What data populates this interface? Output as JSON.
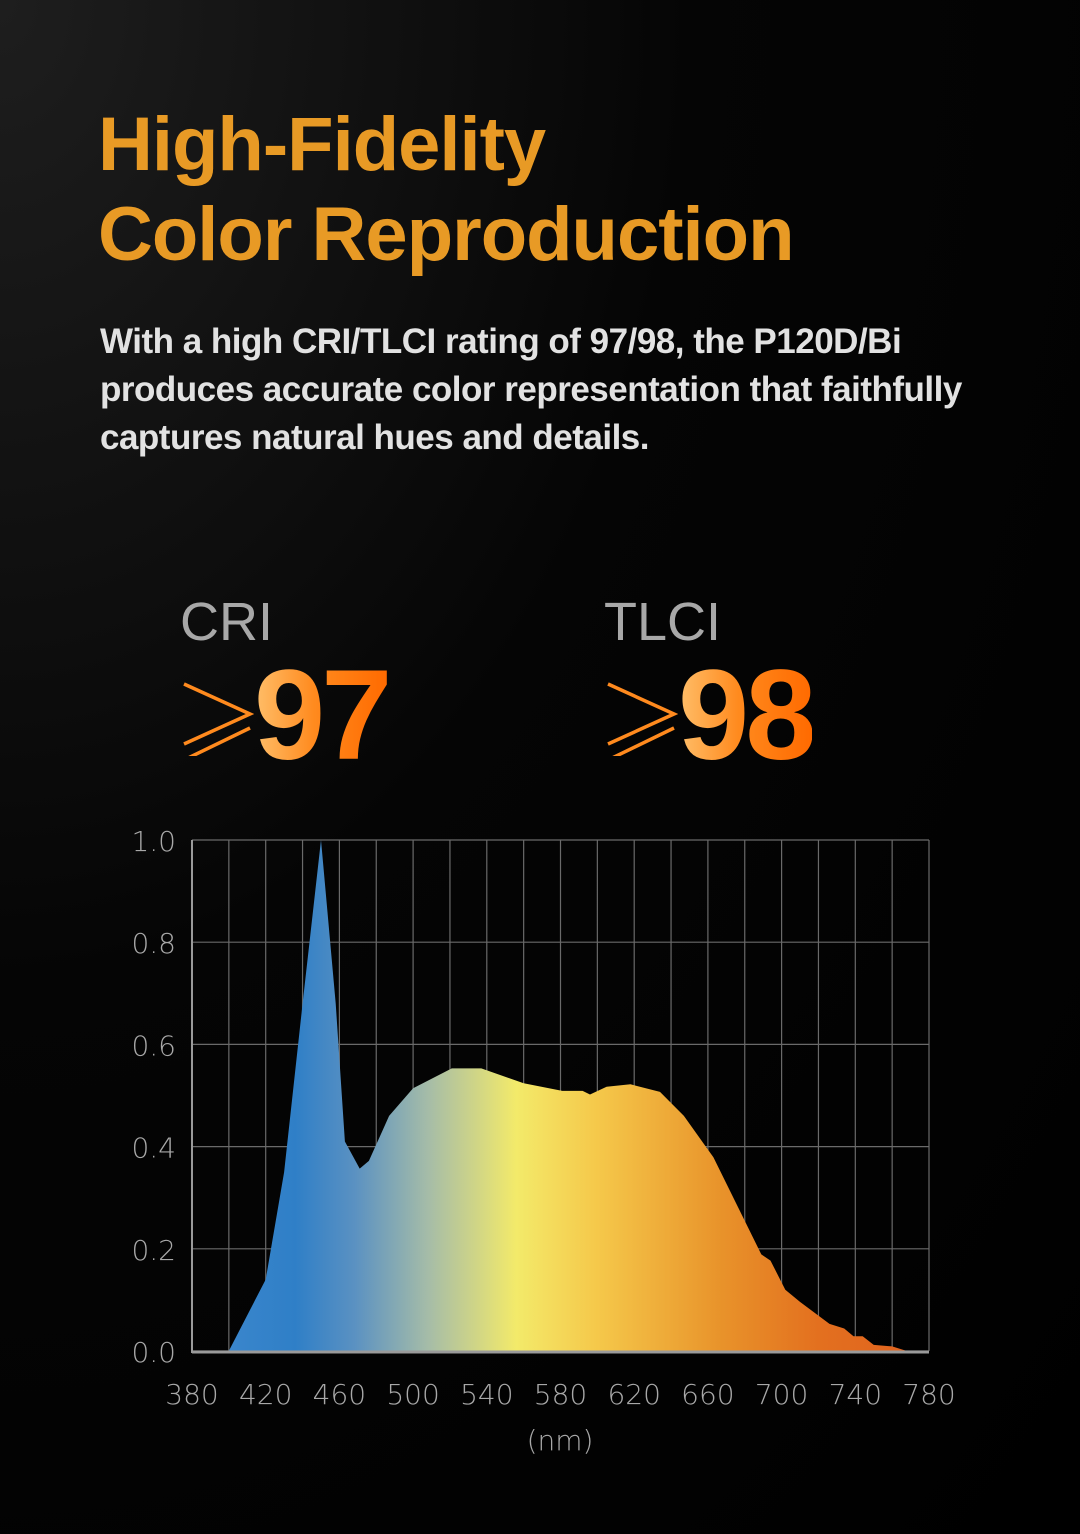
{
  "header": {
    "title_line1": "High-Fidelity",
    "title_line2": "Color Reproduction",
    "description": "With a high CRI/TLCI rating of 97/98, the P120D/Bi produces accurate color representation that faithfully captures natural hues and details."
  },
  "metrics": [
    {
      "label": "CRI",
      "symbol": "≥",
      "value": "97"
    },
    {
      "label": "TLCI",
      "symbol": "≥",
      "value": "98"
    }
  ],
  "colors": {
    "title": "#e89a25",
    "metric_gradient": [
      "#ffbf6a",
      "#ff6a00"
    ],
    "spectrum_gradient": [
      "#2f7fc7",
      "#f5ea62",
      "#e8922a",
      "#e0601e"
    ]
  },
  "chart_data": {
    "type": "area",
    "title": "",
    "xlabel": "(nm)",
    "ylabel": "",
    "xlim": [
      380,
      780
    ],
    "ylim": [
      0,
      1.0
    ],
    "xticks": [
      "380",
      "420",
      "460",
      "500",
      "540",
      "580",
      "620",
      "660",
      "700",
      "740",
      "780"
    ],
    "yticks": [
      "0.0",
      "0.2",
      "0.4",
      "0.6",
      "0.8",
      "1.0"
    ],
    "grid": true,
    "x": [
      400,
      420,
      430,
      440,
      450,
      458,
      463,
      471,
      476,
      487,
      500,
      521,
      537,
      560,
      581,
      592,
      596,
      605,
      618,
      634,
      647,
      663,
      689,
      694,
      702,
      710,
      726,
      734,
      739,
      744,
      750,
      760,
      768
    ],
    "y": [
      0,
      0.14,
      0.35,
      0.68,
      1.0,
      0.68,
      0.41,
      0.357,
      0.372,
      0.46,
      0.514,
      0.553,
      0.553,
      0.524,
      0.509,
      0.509,
      0.502,
      0.517,
      0.522,
      0.507,
      0.46,
      0.379,
      0.189,
      0.177,
      0.12,
      0.096,
      0.053,
      0.044,
      0.029,
      0.029,
      0.012,
      0.009,
      0
    ]
  }
}
